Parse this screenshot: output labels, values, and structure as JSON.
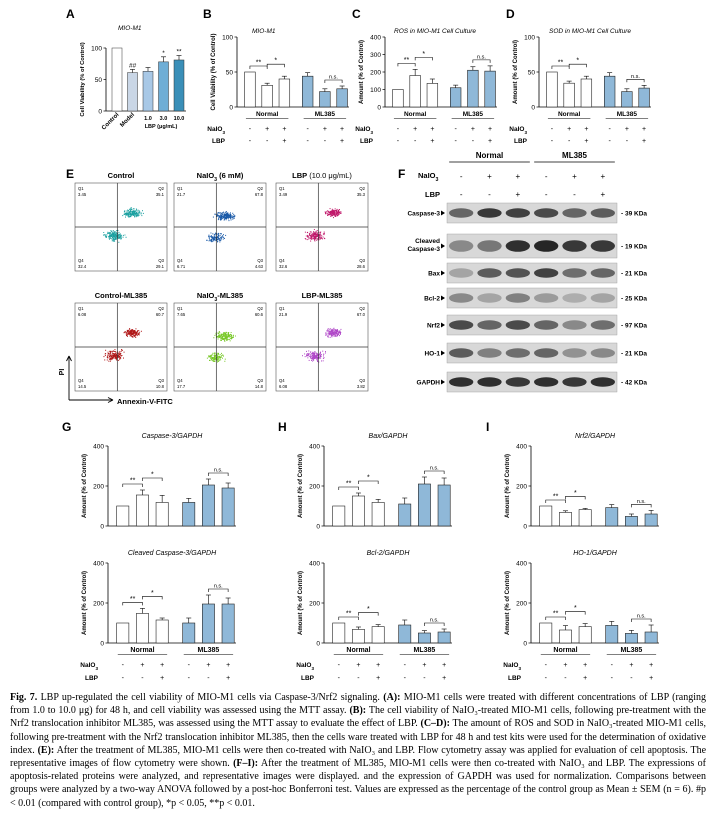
{
  "colors": {
    "white": "#ffffff",
    "blue": "#8fb8d8",
    "barA": [
      "#ffffff",
      "#c9d6e6",
      "#a8c8e6",
      "#6faed6",
      "#3a8fb8",
      "#1f5f80"
    ],
    "scatter": {
      "control": "#1aa0a0",
      "naio3": "#1a5aa8",
      "lbp": "#c0186a",
      "control_ml": "#b01818",
      "naio3_ml": "#78c828",
      "lbp_ml": "#b048c8"
    }
  },
  "panelA": {
    "letter": "A",
    "title": "MIO-M1",
    "ylabel": "Cell Viability (% of Control)",
    "ylim": [
      0,
      100
    ],
    "yticks": [
      "0",
      "50",
      "100"
    ],
    "cats": [
      "Control",
      "Model",
      "1.0",
      "3.0",
      "10.0"
    ],
    "lbp_label": "LBP (μg/mL)",
    "values": [
      100,
      61,
      63,
      78,
      81
    ],
    "errors": [
      0,
      5,
      6,
      8,
      7
    ],
    "marks": [
      "",
      "##",
      "",
      "*",
      "**"
    ]
  },
  "panelB": {
    "letter": "B",
    "title": "MIO-M1",
    "ylabel": "Cell Viability (% of Control)",
    "yticks": [
      "0",
      "50",
      "100"
    ],
    "values": [
      50,
      31,
      40,
      44,
      22,
      26
    ],
    "errors": [
      0,
      3,
      4,
      5,
      4,
      4
    ],
    "groups": [
      "Normal",
      "ML385"
    ],
    "sig": [
      "**",
      "*",
      "n.s."
    ]
  },
  "panelC": {
    "letter": "C",
    "title": "ROS in MIO-M1 Cell Culture",
    "ylabel": "Amount (% of Control)",
    "yticks": [
      "0",
      "100",
      "200",
      "300",
      "400"
    ],
    "values": [
      100,
      180,
      135,
      110,
      210,
      205
    ],
    "errors": [
      0,
      35,
      25,
      15,
      20,
      30
    ],
    "groups": [
      "Normal",
      "ML385"
    ],
    "sig": [
      "**",
      "*",
      "n.s."
    ]
  },
  "panelD": {
    "letter": "D",
    "title": "SOD in MIO-M1 Cell Culture",
    "ylabel": "Amount (% of Control)",
    "yticks": [
      "0",
      "50",
      "100"
    ],
    "values": [
      50,
      34,
      40,
      44,
      22,
      27
    ],
    "errors": [
      0,
      3,
      4,
      5,
      4,
      4
    ],
    "groups": [
      "Normal",
      "ML385"
    ],
    "sig": [
      "**",
      "*",
      "n.s."
    ]
  },
  "treat": {
    "naio3": "NaIO",
    "naio3_sub": "3",
    "lbp": "LBP",
    "row1": [
      "-",
      "+",
      "+",
      "-",
      "+",
      "+"
    ],
    "row2": [
      "-",
      "-",
      "+",
      "-",
      "-",
      "+"
    ]
  },
  "panelE": {
    "letter": "E",
    "xlabel": "Annexin-V-FITC",
    "ylabel": "PI",
    "plots": [
      {
        "title": "Control",
        "q1": "3.45",
        "q2": "35.1",
        "q3": "29.1",
        "q4": "32.4"
      },
      {
        "title": "NaIO",
        "title_sub": "3",
        "title_tail": " (6 mM)",
        "q1": "21.7",
        "q2": "67.8",
        "q3": "4.63",
        "q4": "6.71"
      },
      {
        "title": "LBP",
        "title_tail": " (10.0 μg/mL)",
        "q1": "3.49",
        "q2": "35.3",
        "q3": "28.6",
        "q4": "32.6"
      },
      {
        "title": "Control-ML385",
        "q1": "6.08",
        "q2": "60.7",
        "q3": "10.8",
        "q4": "14.5"
      },
      {
        "title": "NaIO",
        "title_sub": "3",
        "title_tail": "-ML385",
        "q1": "7.65",
        "q2": "60.6",
        "q3": "14.8",
        "q4": "17.7"
      },
      {
        "title": "LBP-ML385",
        "q1": "21.9",
        "q2": "67.0",
        "q3": "3.82",
        "q4": "6.08"
      }
    ]
  },
  "panelF": {
    "letter": "F",
    "groups": [
      "Normal",
      "ML385"
    ],
    "naio3": "NaIO",
    "naio3_sub": "3",
    "lbp": "LBP",
    "row1": [
      "-",
      "+",
      "+",
      "-",
      "+",
      "+"
    ],
    "row2": [
      "-",
      "-",
      "+",
      "-",
      "-",
      "+"
    ],
    "blots": [
      {
        "name": "Caspase-3",
        "size": "39 KDa"
      },
      {
        "name": "Cleaved Caspase-3",
        "size": "19 KDa"
      },
      {
        "name": "Bax",
        "size": "21 KDa"
      },
      {
        "name": "Bcl-2",
        "size": "25 KDa"
      },
      {
        "name": "Nrf2",
        "size": "97 KDa"
      },
      {
        "name": "HO-1",
        "size": "21 KDa"
      },
      {
        "name": "GAPDH",
        "size": "42 KDa"
      }
    ]
  },
  "panelG": {
    "letter": "G",
    "charts": [
      {
        "title": "Caspase-3/GAPDH",
        "values": [
          100,
          155,
          118,
          118,
          205,
          190
        ],
        "errors": [
          0,
          25,
          35,
          20,
          30,
          25
        ]
      },
      {
        "title": "Cleaved Caspase-3/GAPDH",
        "values": [
          100,
          148,
          115,
          100,
          195,
          195
        ],
        "errors": [
          0,
          25,
          10,
          25,
          45,
          30
        ]
      }
    ]
  },
  "panelH": {
    "letter": "H",
    "charts": [
      {
        "title": "Bax/GAPDH",
        "values": [
          100,
          150,
          118,
          110,
          210,
          205
        ],
        "errors": [
          0,
          15,
          15,
          30,
          35,
          35
        ]
      },
      {
        "title": "Bcl-2/GAPDH",
        "values": [
          100,
          68,
          82,
          90,
          50,
          55
        ],
        "errors": [
          0,
          12,
          10,
          25,
          12,
          15
        ]
      }
    ]
  },
  "panelI": {
    "letter": "I",
    "charts": [
      {
        "title": "Nrf2/GAPDH",
        "values": [
          100,
          68,
          82,
          92,
          48,
          60
        ],
        "errors": [
          0,
          8,
          6,
          15,
          12,
          18
        ]
      },
      {
        "title": "HO-1/GAPDH",
        "values": [
          100,
          65,
          82,
          88,
          48,
          55
        ],
        "errors": [
          0,
          22,
          15,
          20,
          15,
          35
        ]
      }
    ]
  },
  "ghi": {
    "ylabel": "Amount (% of Control)",
    "yticks": [
      "0",
      "200",
      "400"
    ],
    "sig": [
      "**",
      "*",
      "n.s."
    ],
    "groups": [
      "Normal",
      "ML385"
    ]
  },
  "caption": {
    "p1": "Fig. 7.",
    "p2": " LBP up-regulated the cell viability of MIO-M1 cells via Caspase-3/Nrf2 signaling. ",
    "p3": "(A):",
    "p4": " MIO-M1 cells were treated with different concentrations of LBP (ranging from 1.0 to 10.0 μg) for 48 h, and cell viability was assessed using the MTT assay. ",
    "p5": "(B):",
    "p6": " The cell viability of NaIO₃-treated MIO-M1 cells, following pre-treatment with the Nrf2 translocation inhibitor ML385, was assessed using the MTT assay to evaluate the effect of LBP. ",
    "p7": "(C–D):",
    "p8": " The amount of ROS and SOD in NaIO₃-treated MIO-M1 cells, following pre-treatment with the Nrf2 translocation inhibitor ML385, then the cells ware treated with LBP for 48 h and test kits were used for the determination of oxidative index. ",
    "p9": "(E):",
    "p10": " After the treatment of ML385, MIO-M1 cells were then co-treated with NaIO₃ and LBP. Flow cytometry assay was applied for evaluation of cell apoptosis. The representative images of flow cytometry were shown. ",
    "p11": "(F–I):",
    "p12": " After the treatment of ML385, MIO-M1 cells were then co-treated with NaIO₃ and LBP. The expressions of apoptosis-related proteins were analyzed, and representative images were displayed. and the expression of GAPDH was used for normalization. Comparisons between groups were analyzed by a two-way ANOVA followed by a post-hoc Bonferroni test. Values are expressed as the percentage of the control group as Mean ± SEM (n = 6). #p < 0.01 (compared with control group), *p < 0.05, **p < 0.01."
  }
}
